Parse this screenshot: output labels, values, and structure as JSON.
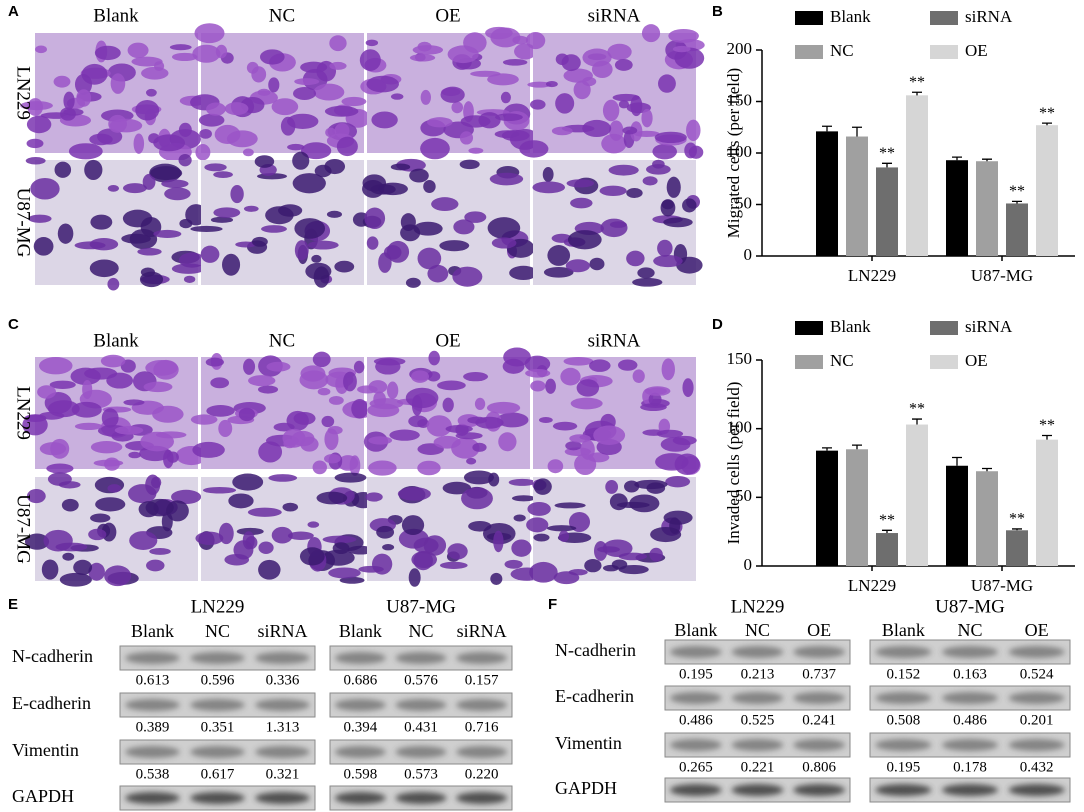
{
  "panel_labels": [
    "A",
    "B",
    "C",
    "D",
    "E",
    "F"
  ],
  "images": [
    {
      "columns": [
        "Blank",
        "NC",
        "OE",
        "siRNA"
      ],
      "rows": [
        "LN229",
        "U87-MG"
      ]
    },
    {
      "columns": [
        "Blank",
        "NC",
        "OE",
        "siRNA"
      ],
      "rows": [
        "LN229",
        "U87-MG"
      ]
    }
  ],
  "chart_data": [
    {
      "type": "bar",
      "y_label": "Migrated cells (per field)",
      "categories": [
        "LN229",
        "U87-MG"
      ],
      "series": [
        {
          "name": "Blank",
          "color": "#000000",
          "values": [
            121,
            93
          ],
          "errors": [
            5,
            3
          ]
        },
        {
          "name": "NC",
          "color": "#a0a0a0",
          "values": [
            116,
            92
          ],
          "errors": [
            9,
            2
          ]
        },
        {
          "name": "siRNA",
          "color": "#6e6e6e",
          "values": [
            86,
            51
          ],
          "errors": [
            4,
            2
          ],
          "annotations": [
            "**",
            "**"
          ]
        },
        {
          "name": "OE",
          "color": "#d6d6d6",
          "values": [
            156,
            127
          ],
          "errors": [
            3,
            2
          ],
          "annotations": [
            "**",
            "**"
          ]
        }
      ],
      "ylim": [
        0,
        200
      ],
      "yticks": [
        0,
        50,
        100,
        150,
        200
      ],
      "legend": "top"
    },
    {
      "type": "bar",
      "y_label": "Invaded cells (per field)",
      "categories": [
        "LN229",
        "U87-MG"
      ],
      "series": [
        {
          "name": "Blank",
          "color": "#000000",
          "values": [
            84,
            73
          ],
          "errors": [
            2,
            6
          ]
        },
        {
          "name": "NC",
          "color": "#a0a0a0",
          "values": [
            85,
            69
          ],
          "errors": [
            3,
            2
          ]
        },
        {
          "name": "siRNA",
          "color": "#6e6e6e",
          "values": [
            24,
            26
          ],
          "errors": [
            2,
            1
          ],
          "annotations": [
            "**",
            "**"
          ]
        },
        {
          "name": "OE",
          "color": "#d6d6d6",
          "values": [
            103,
            92
          ],
          "errors": [
            4,
            3
          ],
          "annotations": [
            "**",
            "**"
          ]
        }
      ],
      "ylim": [
        0,
        150
      ],
      "yticks": [
        0,
        50,
        100,
        150
      ],
      "legend": "top"
    }
  ],
  "blots": [
    {
      "rows": [
        "N-cadherin",
        "E-cadherin",
        "Vimentin",
        "GAPDH"
      ],
      "groups": [
        {
          "name": "LN229",
          "columns": [
            "Blank",
            "NC",
            "siRNA"
          ],
          "values": [
            [
              "0.613",
              "0.596",
              "0.336"
            ],
            [
              "0.389",
              "0.351",
              "1.313"
            ],
            [
              "0.538",
              "0.617",
              "0.321"
            ]
          ]
        },
        {
          "name": "U87-MG",
          "columns": [
            "Blank",
            "NC",
            "siRNA"
          ],
          "values": [
            [
              "0.686",
              "0.576",
              "0.157"
            ],
            [
              "0.394",
              "0.431",
              "0.716"
            ],
            [
              "0.598",
              "0.573",
              "0.220"
            ]
          ]
        }
      ]
    },
    {
      "rows": [
        "N-cadherin",
        "E-cadherin",
        "Vimentin",
        "GAPDH"
      ],
      "groups": [
        {
          "name": "LN229",
          "columns": [
            "Blank",
            "NC",
            "OE"
          ],
          "values": [
            [
              "0.195",
              "0.213",
              "0.737"
            ],
            [
              "0.486",
              "0.525",
              "0.241"
            ],
            [
              "0.265",
              "0.221",
              "0.806"
            ]
          ]
        },
        {
          "name": "U87-MG",
          "columns": [
            "Blank",
            "NC",
            "OE"
          ],
          "values": [
            [
              "0.152",
              "0.163",
              "0.524"
            ],
            [
              "0.508",
              "0.486",
              "0.201"
            ],
            [
              "0.195",
              "0.178",
              "0.432"
            ]
          ]
        }
      ]
    }
  ]
}
